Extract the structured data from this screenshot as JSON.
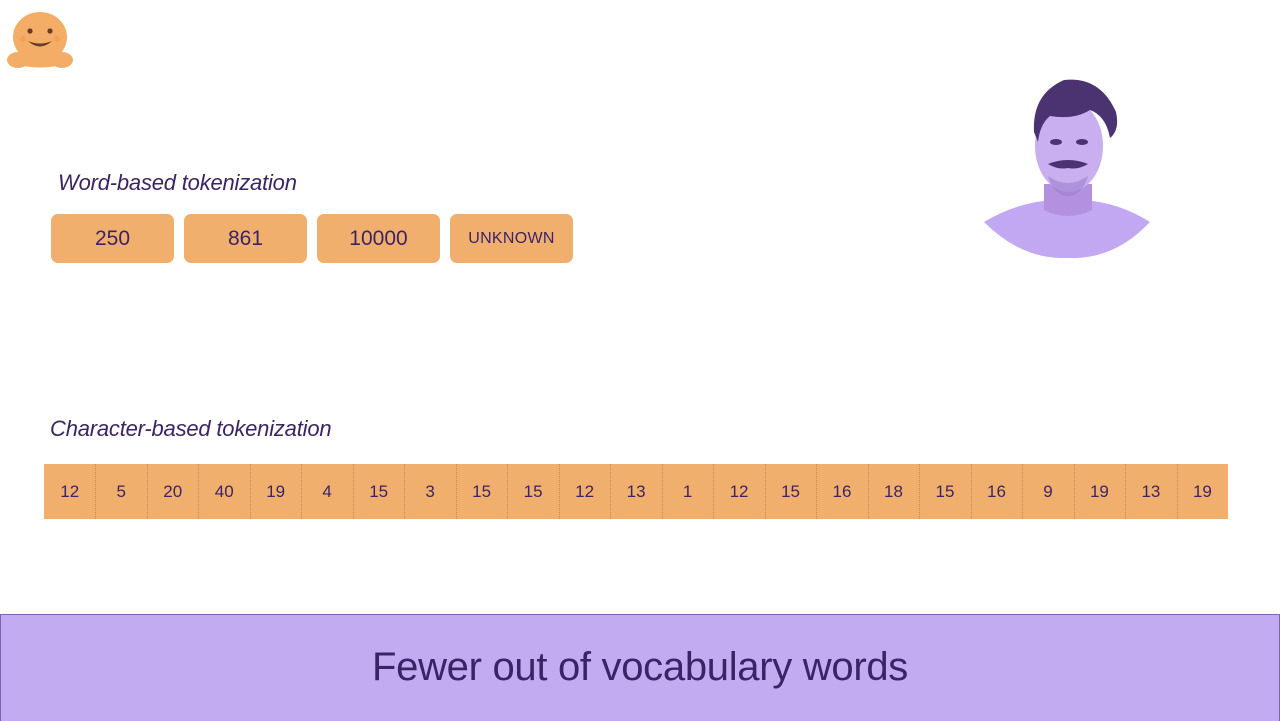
{
  "logo": {
    "icon": "hugging-face-logo-icon",
    "color": "#f4ad67"
  },
  "presenter": {
    "icon": "presenter-portrait"
  },
  "word_section": {
    "label": "Word-based tokenization",
    "tokens": [
      "250",
      "861",
      "10000",
      "UNKNOWN"
    ]
  },
  "char_section": {
    "label": "Character-based tokenization",
    "tokens": [
      "12",
      "5",
      "20",
      "40",
      "19",
      "4",
      "15",
      "3",
      "15",
      "15",
      "12",
      "13",
      "1",
      "12",
      "15",
      "16",
      "18",
      "15",
      "16",
      "9",
      "19",
      "13",
      "19"
    ]
  },
  "banner": {
    "text": "Fewer out of vocabulary words"
  },
  "colors": {
    "token_fill": "#f1af6e",
    "text": "#3b2466",
    "banner_fill": "#c3abf2"
  }
}
